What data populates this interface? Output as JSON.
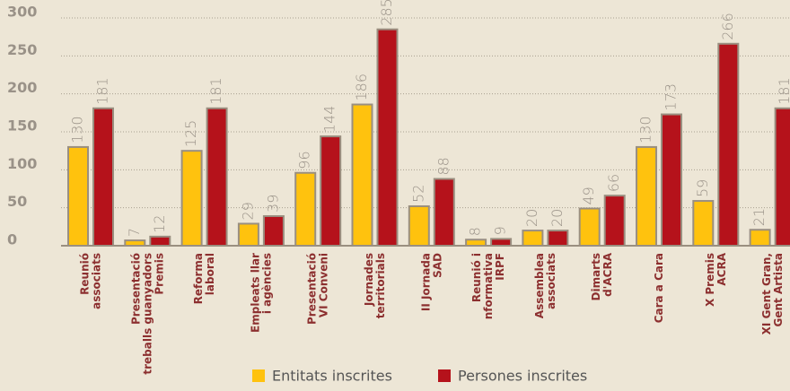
{
  "chart_data": {
    "type": "bar",
    "categories": [
      "Reunió\nassociats",
      "Presentació\ntreballs guanyadors\nPremis",
      "Reforma\nlaboral",
      "Empleats llar\ni agències",
      "Presentació\nVI Conveni",
      "Jornades\nterritorials",
      "II Jornada\nSAD",
      "Reunió i\nnformativa\nIRPF",
      "Assemblea\nassociats",
      "Dimarts\nd'ACRA",
      "Cara a Cara",
      "X Premis\nACRA",
      "XI Gent Gran,\nGent Artista"
    ],
    "series": [
      {
        "name": "Entitats inscrites",
        "color": "#ffc20e",
        "values": [
          130,
          7,
          125,
          29,
          96,
          186,
          52,
          8,
          20,
          49,
          130,
          59,
          21
        ]
      },
      {
        "name": "Persones inscrites",
        "color": "#b5121b",
        "values": [
          181,
          12,
          181,
          39,
          144,
          285,
          88,
          9,
          20,
          66,
          173,
          266,
          181
        ]
      }
    ],
    "ylim": [
      0,
      300
    ],
    "yticks": [
      0,
      50,
      100,
      150,
      200,
      250,
      300
    ],
    "grid": true,
    "legend": "bottom"
  }
}
